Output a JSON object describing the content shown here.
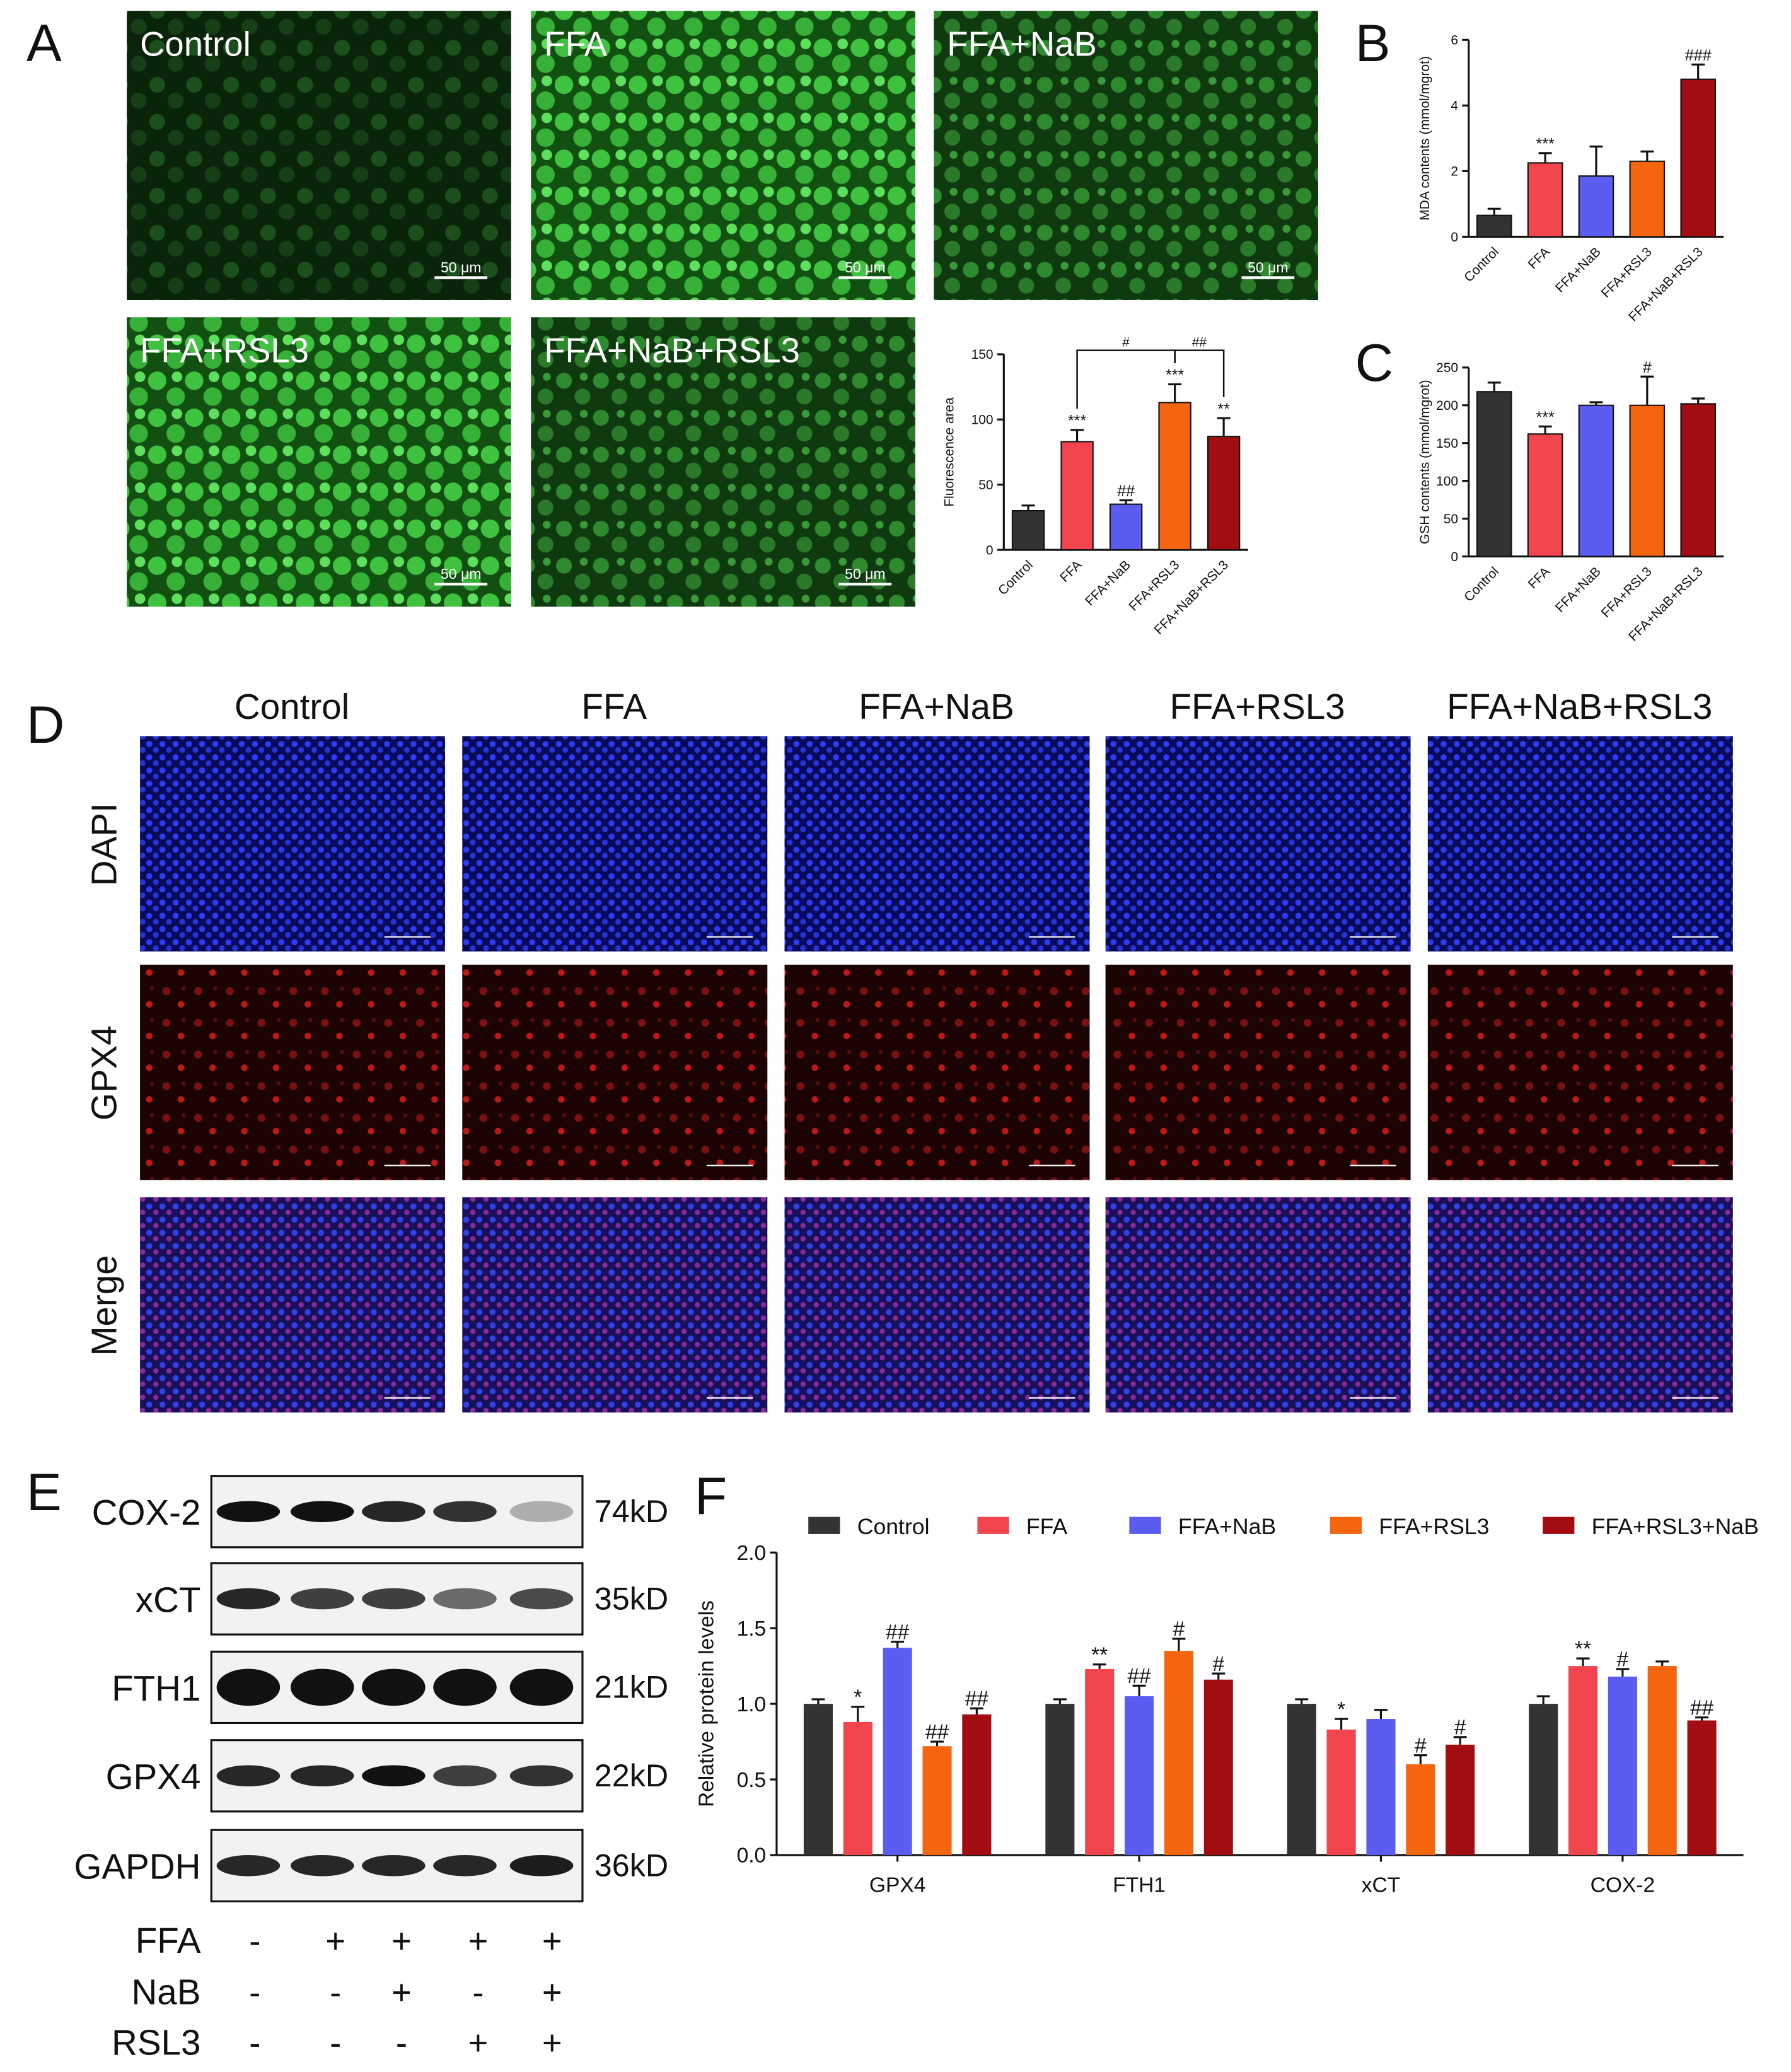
{
  "panel_a": {
    "letter": "A",
    "images": [
      "Control",
      "FFA",
      "FFA+NaB",
      "FFA+RSL3",
      "FFA+NaB+RSL3"
    ],
    "scale_bar": "50 μm"
  },
  "panel_d": {
    "letter": "D",
    "columns": [
      "Control",
      "FFA",
      "FFA+NaB",
      "FFA+RSL3",
      "FFA+NaB+RSL3"
    ],
    "rows": [
      "DAPI",
      "GPX4",
      "Merge"
    ]
  },
  "panel_e": {
    "letter": "E",
    "blots": [
      {
        "protein": "COX-2",
        "size": "74kD"
      },
      {
        "protein": "xCT",
        "size": "35kD"
      },
      {
        "protein": "FTH1",
        "size": "21kD"
      },
      {
        "protein": "GPX4",
        "size": "22kD"
      },
      {
        "protein": "GAPDH",
        "size": "36kD"
      }
    ],
    "treatments": [
      {
        "name": "FFA",
        "signs": [
          "-",
          "+",
          "+",
          "+",
          "+"
        ]
      },
      {
        "name": "NaB",
        "signs": [
          "-",
          "-",
          "+",
          "-",
          "+"
        ]
      },
      {
        "name": "RSL3",
        "signs": [
          "-",
          "-",
          "-",
          "+",
          "+"
        ]
      }
    ]
  },
  "chart_data": [
    {
      "type": "bar",
      "y_label": "Fluorescence area",
      "categories": [
        "Control",
        "FFA",
        "FFA+NaB",
        "FFA+RSL3",
        "FFA+NaB+RSL3"
      ],
      "values": [
        30,
        83,
        35,
        113,
        87
      ],
      "errors": [
        4,
        9,
        3,
        14,
        14
      ],
      "significance": [
        null,
        "***",
        "##",
        "***",
        "**"
      ],
      "comparisons": [
        {
          "from": "FFA",
          "to": "FFA+RSL3",
          "label": "#"
        },
        {
          "from": "FFA+RSL3",
          "to": "FFA+NaB+RSL3",
          "label": "##"
        }
      ],
      "colors": [
        "#333333",
        "#f2454d",
        "#5a5cf2",
        "#f5650f",
        "#a20d12"
      ],
      "ylim": [
        0,
        150
      ],
      "yticks": [
        0,
        50,
        100,
        150
      ]
    },
    {
      "type": "bar",
      "panel": "B",
      "y_label": "MDA contents (mmol/mgrot)",
      "categories": [
        "Control",
        "FFA",
        "FFA+NaB",
        "FFA+RSL3",
        "FFA+NaB+RSL3"
      ],
      "values": [
        0.65,
        2.25,
        1.85,
        2.3,
        4.8
      ],
      "errors": [
        0.2,
        0.3,
        0.9,
        0.3,
        0.45
      ],
      "significance": [
        null,
        "***",
        null,
        null,
        "###"
      ],
      "colors": [
        "#333333",
        "#f2454d",
        "#5a5cf2",
        "#f5650f",
        "#a20d12"
      ],
      "ylim": [
        0,
        6
      ],
      "yticks": [
        0,
        2,
        4,
        6
      ]
    },
    {
      "type": "bar",
      "panel": "C",
      "y_label": "GSH contents (mmol/mgrot)",
      "categories": [
        "Control",
        "FFA",
        "FFA+NaB",
        "FFA+RSL3",
        "FFA+NaB+RSL3"
      ],
      "values": [
        218,
        162,
        200,
        200,
        202
      ],
      "errors": [
        12,
        10,
        4,
        38,
        7
      ],
      "significance": [
        null,
        "***",
        null,
        "#",
        null
      ],
      "colors": [
        "#333333",
        "#f2454d",
        "#5a5cf2",
        "#f5650f",
        "#a20d12"
      ],
      "ylim": [
        0,
        250
      ],
      "yticks": [
        0,
        50,
        100,
        150,
        200,
        250
      ]
    },
    {
      "type": "grouped_bar",
      "panel": "F",
      "y_label": "Relative protein levels",
      "categories": [
        "GPX4",
        "FTH1",
        "xCT",
        "COX-2"
      ],
      "series": [
        {
          "name": "Control",
          "color": "#333333",
          "values": [
            1.0,
            1.0,
            1.0,
            1.0
          ],
          "errors": [
            0.03,
            0.03,
            0.03,
            0.05
          ],
          "significance": [
            null,
            null,
            null,
            null
          ]
        },
        {
          "name": "FFA",
          "color": "#f2454d",
          "values": [
            0.88,
            1.23,
            0.83,
            1.25
          ],
          "errors": [
            0.1,
            0.03,
            0.07,
            0.05
          ],
          "significance": [
            "*",
            "**",
            "*",
            "**"
          ]
        },
        {
          "name": "FFA+NaB",
          "color": "#5a5cf2",
          "values": [
            1.37,
            1.05,
            0.9,
            1.18
          ],
          "errors": [
            0.04,
            0.07,
            0.06,
            0.05
          ],
          "significance": [
            "##",
            "##",
            null,
            "#"
          ]
        },
        {
          "name": "FFA+RSL3",
          "color": "#f5650f",
          "values": [
            0.72,
            1.35,
            0.6,
            1.25
          ],
          "errors": [
            0.03,
            0.08,
            0.06,
            0.03
          ],
          "significance": [
            "##",
            "#",
            "#",
            null
          ]
        },
        {
          "name": "FFA+RSL3+NaB",
          "color": "#a20d12",
          "values": [
            0.93,
            1.16,
            0.73,
            0.89
          ],
          "errors": [
            0.04,
            0.04,
            0.05,
            0.02
          ],
          "significance": [
            "##",
            "#",
            "#",
            "##"
          ]
        }
      ],
      "ylim": [
        0,
        2
      ],
      "yticks": [
        {
          "value": 0,
          "label": "0.0"
        },
        {
          "value": 0.5,
          "label": "0.5"
        },
        {
          "value": 1,
          "label": "1.0"
        },
        {
          "value": 1.5,
          "label": "1.5"
        },
        {
          "value": 2,
          "label": "2.0"
        }
      ]
    }
  ]
}
